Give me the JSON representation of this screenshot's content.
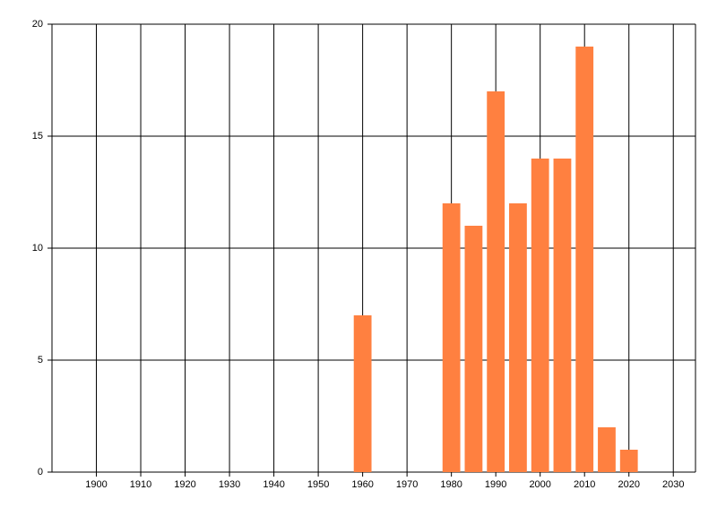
{
  "chart_data": {
    "type": "bar",
    "x": [
      1960,
      1980,
      1985,
      1990,
      1995,
      2000,
      2005,
      2010,
      2015,
      2020
    ],
    "values": [
      7,
      12,
      11,
      17,
      12,
      14,
      14,
      19,
      2,
      1
    ],
    "color": "#ff8040",
    "xlim": [
      1890,
      2035
    ],
    "xticks": [
      1900,
      1910,
      1920,
      1930,
      1940,
      1950,
      1960,
      1970,
      1980,
      1990,
      2000,
      2010,
      2020,
      2030
    ],
    "ylim": [
      0,
      20
    ],
    "yticks": [
      0,
      5,
      10,
      15,
      20
    ],
    "grid": true
  }
}
